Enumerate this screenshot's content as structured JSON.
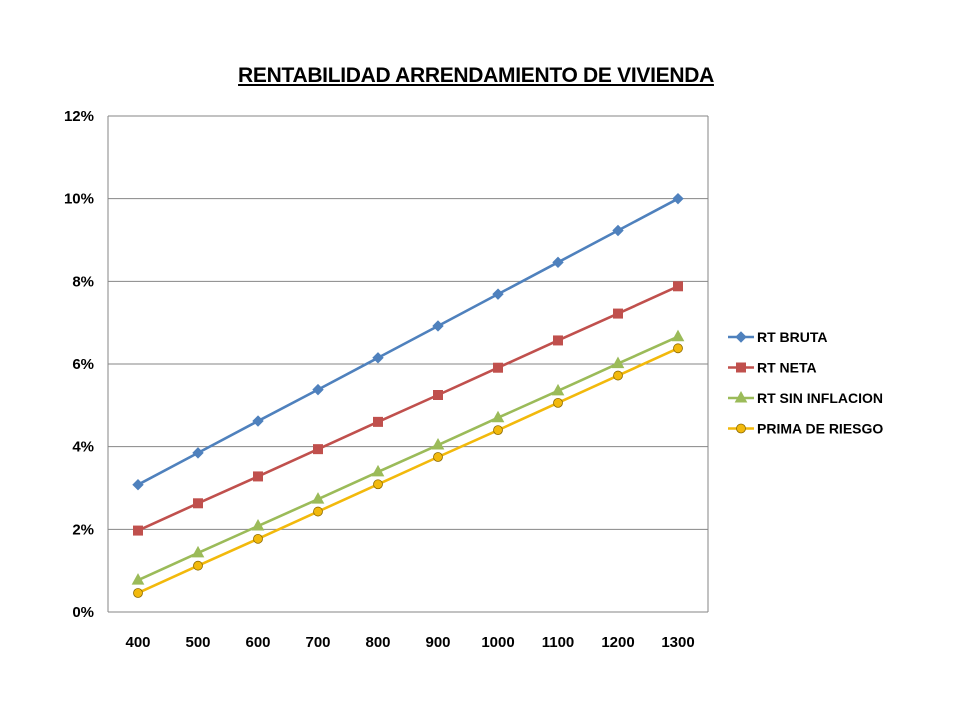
{
  "chart_data": {
    "type": "line",
    "title": "RENTABILIDAD ARRENDAMIENTO DE VIVIENDA",
    "xlabel": "",
    "ylabel": "",
    "categories": [
      "400",
      "500",
      "600",
      "700",
      "800",
      "900",
      "1000",
      "1100",
      "1200",
      "1300"
    ],
    "ylim": [
      0,
      0.12
    ],
    "yticks": [
      0,
      0.02,
      0.04,
      0.06,
      0.08,
      0.1,
      0.12
    ],
    "ytick_labels": [
      "0%",
      "2%",
      "4%",
      "6%",
      "8%",
      "10%",
      "12%"
    ],
    "grid": true,
    "legend_position": "right",
    "series": [
      {
        "name": "RT BRUTA",
        "color": "#4F81BD",
        "marker": "diamond",
        "values": [
          0.0308,
          0.0385,
          0.0462,
          0.0538,
          0.0615,
          0.0692,
          0.0769,
          0.0846,
          0.0923,
          0.1
        ]
      },
      {
        "name": "RT NETA",
        "color": "#C0504D",
        "marker": "square",
        "values": [
          0.0197,
          0.0263,
          0.0328,
          0.0394,
          0.046,
          0.0525,
          0.0591,
          0.0657,
          0.0722,
          0.0788
        ]
      },
      {
        "name": "RT SIN INFLACION",
        "color": "#9BBB59",
        "marker": "triangle",
        "values": [
          0.0077,
          0.0143,
          0.0208,
          0.0273,
          0.0339,
          0.0404,
          0.047,
          0.0535,
          0.0601,
          0.0666
        ]
      },
      {
        "name": "PRIMA DE RIESGO",
        "color": "#F2B90C",
        "marker": "circle",
        "values": [
          0.0046,
          0.0112,
          0.0177,
          0.0243,
          0.0309,
          0.0375,
          0.044,
          0.0506,
          0.0572,
          0.0638
        ]
      }
    ]
  }
}
